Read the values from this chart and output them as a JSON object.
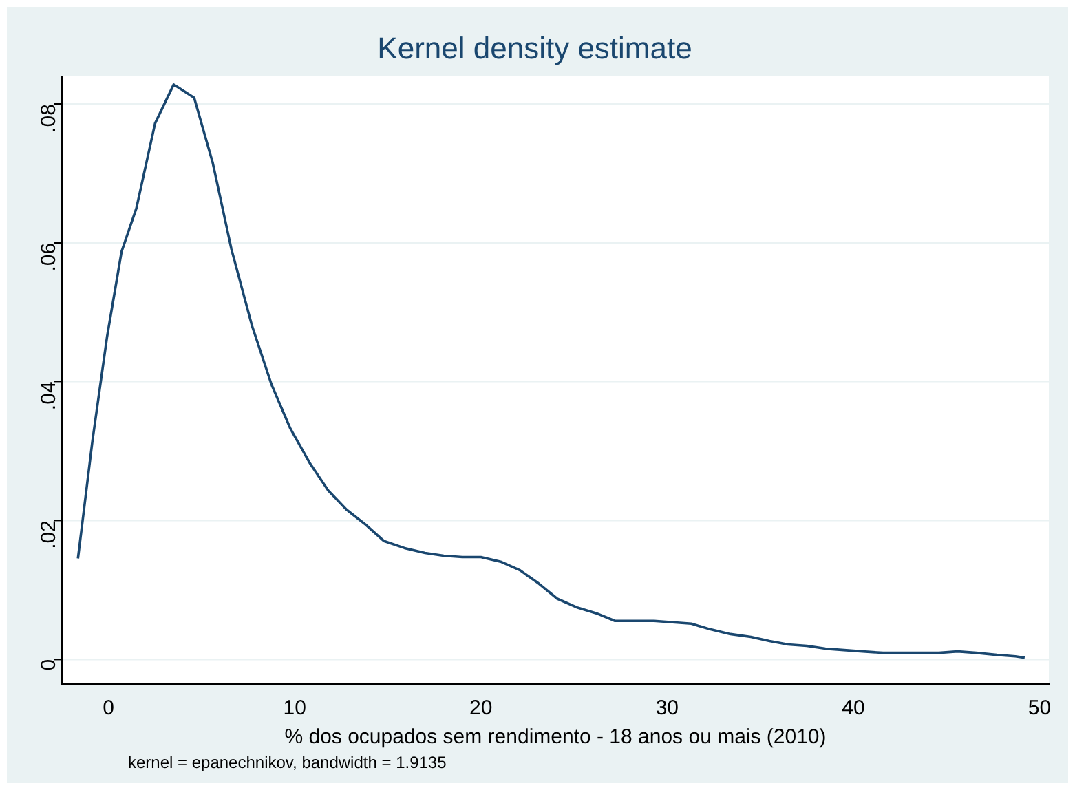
{
  "chart_data": {
    "type": "line",
    "title": "Kernel density estimate",
    "xlabel": "% dos ocupados sem rendimento - 18 anos ou mais (2010)",
    "annotations": [
      "kernel = epanechnikov, bandwidth = 1.9135"
    ],
    "x": [
      -1.64,
      -0.86,
      -0.08,
      0.7,
      1.5,
      2.5,
      3.5,
      4.6,
      5.6,
      6.6,
      7.7,
      8.75,
      9.77,
      10.8,
      11.8,
      12.8,
      13.8,
      14.8,
      15.9,
      17,
      18,
      19,
      20,
      21.1,
      22.1,
      23.1,
      24.1,
      25.2,
      26.2,
      27.2,
      28.3,
      29.3,
      30.3,
      31.3,
      32.3,
      33.4,
      34.5,
      35.5,
      36.5,
      37.5,
      38.5,
      39.5,
      40.5,
      41.6,
      42.6,
      43.6,
      44.6,
      45.6,
      46.6,
      47.7,
      48.7,
      49.2
    ],
    "series": [
      {
        "color": "#1a476f",
        "values": [
          0.0145,
          0.0315,
          0.0464,
          0.0587,
          0.065,
          0.0772,
          0.0828,
          0.0809,
          0.0715,
          0.0591,
          0.0481,
          0.0396,
          0.0332,
          0.0283,
          0.0243,
          0.0215,
          0.0194,
          0.017,
          0.016,
          0.0153,
          0.0149,
          0.0147,
          0.0147,
          0.014,
          0.0128,
          0.0109,
          0.0087,
          0.0074,
          0.0066,
          0.0055,
          0.0055,
          0.0055,
          0.0053,
          0.0051,
          0.0043,
          0.0036,
          0.0032,
          0.0026,
          0.0021,
          0.0019,
          0.0015,
          0.0013,
          0.0011,
          0.0009,
          0.0009,
          0.0009,
          0.0009,
          0.0011,
          0.0009,
          0.0006,
          0.0004,
          0.0002
        ]
      }
    ],
    "xlim": [
      -2.5,
      50.5
    ],
    "xticks": [
      0,
      10,
      20,
      30,
      40,
      50
    ],
    "ylim": [
      -0.0036,
      0.084
    ],
    "yticks": [
      {
        "value": 0,
        "label": "0"
      },
      {
        "value": 0.02,
        "label": ".02"
      },
      {
        "value": 0.04,
        "label": ".04"
      },
      {
        "value": 0.06,
        "label": ".06"
      },
      {
        "value": 0.08,
        "label": ".08"
      }
    ],
    "grid": "y",
    "legend": false,
    "marker": "none",
    "line_style": "solid"
  }
}
